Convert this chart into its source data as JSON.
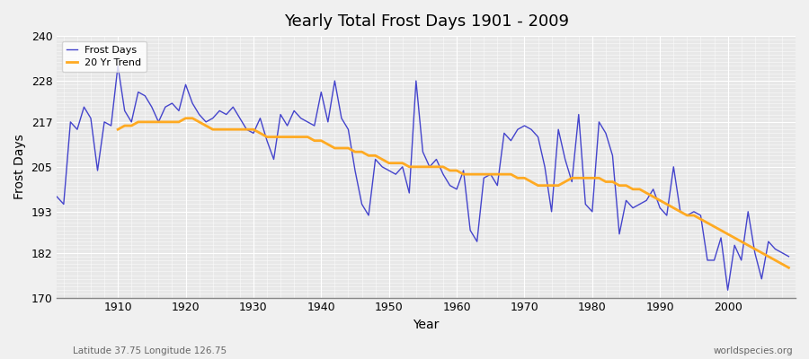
{
  "title": "Yearly Total Frost Days 1901 - 2009",
  "xlabel": "Year",
  "ylabel": "Frost Days",
  "footer_left": "Latitude 37.75 Longitude 126.75",
  "footer_right": "worldspecies.org",
  "legend_frost": "Frost Days",
  "legend_trend": "20 Yr Trend",
  "frost_color": "#4444cc",
  "trend_color": "#ffaa22",
  "bg_color": "#f0f0f0",
  "plot_bg_color": "#e8e8e8",
  "ylim": [
    170,
    240
  ],
  "yticks": [
    170,
    182,
    193,
    205,
    217,
    228,
    240
  ],
  "xlim": [
    1901,
    2010
  ],
  "xticks": [
    1910,
    1920,
    1930,
    1940,
    1950,
    1960,
    1970,
    1980,
    1990,
    2000
  ],
  "years": [
    1901,
    1902,
    1903,
    1904,
    1905,
    1906,
    1907,
    1908,
    1909,
    1910,
    1911,
    1912,
    1913,
    1914,
    1915,
    1916,
    1917,
    1918,
    1919,
    1920,
    1921,
    1922,
    1923,
    1924,
    1925,
    1926,
    1927,
    1928,
    1929,
    1930,
    1931,
    1932,
    1933,
    1934,
    1935,
    1936,
    1937,
    1938,
    1939,
    1940,
    1941,
    1942,
    1943,
    1944,
    1945,
    1946,
    1947,
    1948,
    1949,
    1950,
    1951,
    1952,
    1953,
    1954,
    1955,
    1956,
    1957,
    1958,
    1959,
    1960,
    1961,
    1962,
    1963,
    1964,
    1965,
    1966,
    1967,
    1968,
    1969,
    1970,
    1971,
    1972,
    1973,
    1974,
    1975,
    1976,
    1977,
    1978,
    1979,
    1980,
    1981,
    1982,
    1983,
    1984,
    1985,
    1986,
    1987,
    1988,
    1989,
    1990,
    1991,
    1992,
    1993,
    1994,
    1995,
    1996,
    1997,
    1998,
    1999,
    2000,
    2001,
    2002,
    2003,
    2004,
    2005,
    2006,
    2007,
    2008,
    2009
  ],
  "frost_days": [
    197,
    195,
    217,
    215,
    221,
    218,
    204,
    217,
    216,
    232,
    220,
    217,
    225,
    224,
    221,
    217,
    221,
    222,
    220,
    227,
    222,
    219,
    217,
    218,
    220,
    219,
    221,
    218,
    215,
    214,
    218,
    212,
    207,
    219,
    216,
    220,
    218,
    217,
    216,
    225,
    217,
    228,
    218,
    215,
    204,
    195,
    192,
    207,
    205,
    204,
    203,
    205,
    198,
    228,
    209,
    205,
    207,
    203,
    200,
    199,
    204,
    188,
    185,
    202,
    203,
    200,
    214,
    212,
    215,
    216,
    215,
    213,
    205,
    193,
    215,
    207,
    201,
    219,
    195,
    193,
    217,
    214,
    208,
    187,
    196,
    194,
    195,
    196,
    199,
    194,
    192,
    205,
    193,
    192,
    193,
    192,
    180,
    180,
    186,
    172,
    184,
    180,
    193,
    182,
    175,
    185,
    183,
    182,
    181
  ],
  "trend_years": [
    1910,
    1911,
    1912,
    1913,
    1914,
    1915,
    1916,
    1917,
    1918,
    1919,
    1920,
    1921,
    1922,
    1923,
    1924,
    1925,
    1926,
    1927,
    1928,
    1929,
    1930,
    1931,
    1932,
    1933,
    1934,
    1935,
    1936,
    1937,
    1938,
    1939,
    1940,
    1941,
    1942,
    1943,
    1944,
    1945,
    1946,
    1947,
    1948,
    1949,
    1950,
    1951,
    1952,
    1953,
    1954,
    1955,
    1956,
    1957,
    1958,
    1959,
    1960,
    1961,
    1962,
    1963,
    1964,
    1965,
    1966,
    1967,
    1968,
    1969,
    1970,
    1971,
    1972,
    1973,
    1974,
    1975,
    1976,
    1977,
    1978,
    1979,
    1980,
    1981,
    1982,
    1983,
    1984,
    1985,
    1986,
    1987,
    1988,
    1989,
    1990,
    1991,
    1992,
    1993,
    1994,
    1995,
    1996,
    1997,
    1998,
    1999,
    2000,
    2001,
    2002,
    2003,
    2004,
    2005,
    2006,
    2007,
    2008,
    2009
  ],
  "trend_values": [
    215,
    216,
    216,
    217,
    217,
    217,
    217,
    217,
    217,
    217,
    218,
    218,
    217,
    216,
    215,
    215,
    215,
    215,
    215,
    215,
    215,
    214,
    213,
    213,
    213,
    213,
    213,
    213,
    213,
    212,
    212,
    211,
    210,
    210,
    210,
    209,
    209,
    208,
    208,
    207,
    206,
    206,
    206,
    205,
    205,
    205,
    205,
    205,
    205,
    204,
    204,
    203,
    203,
    203,
    203,
    203,
    203,
    203,
    203,
    202,
    202,
    201,
    200,
    200,
    200,
    200,
    201,
    202,
    202,
    202,
    202,
    202,
    201,
    201,
    200,
    200,
    199,
    199,
    198,
    197,
    196,
    195,
    194,
    193,
    192,
    192,
    191,
    190,
    189,
    188,
    187,
    186,
    185,
    184,
    183,
    182,
    181,
    180,
    179,
    178
  ]
}
